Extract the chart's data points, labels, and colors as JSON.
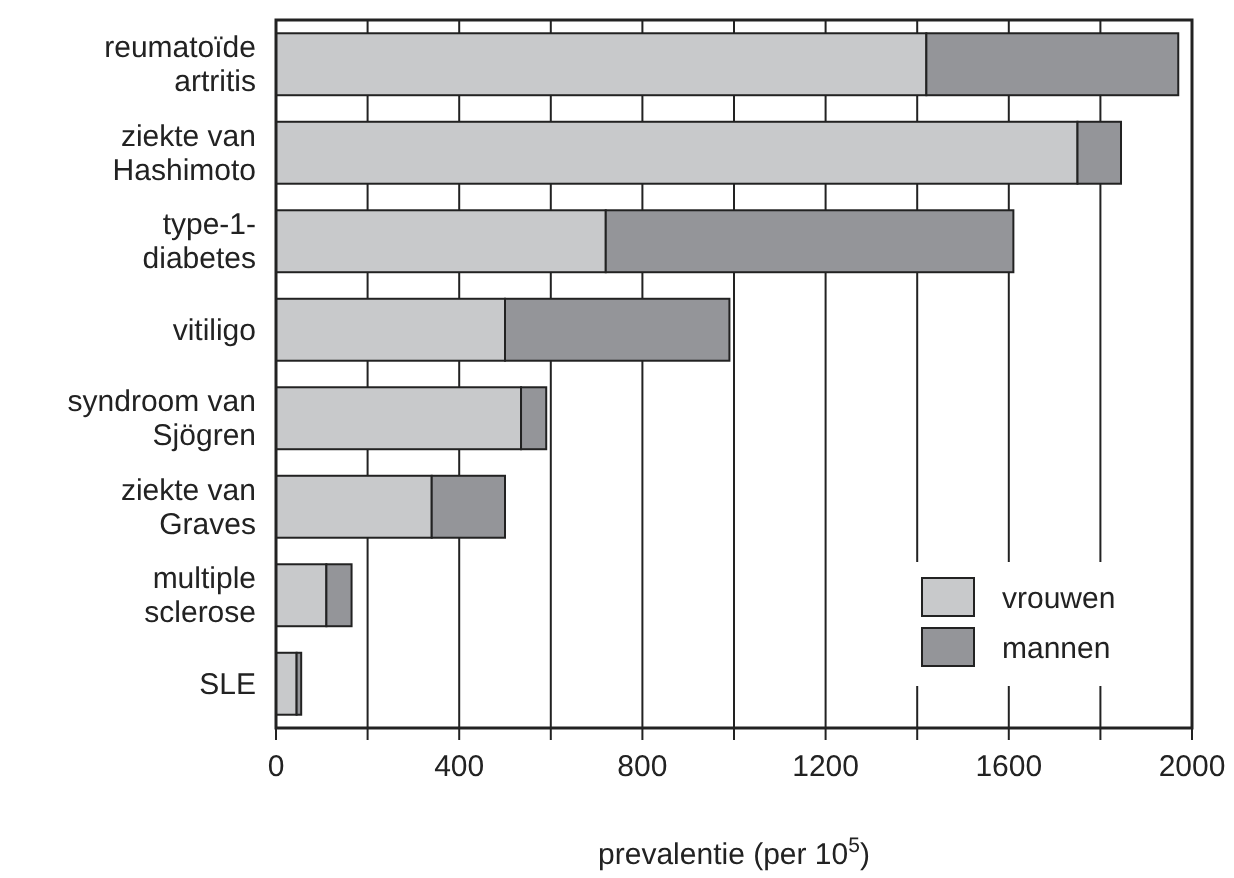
{
  "chart_data": {
    "type": "bar",
    "orientation": "horizontal",
    "stacked": true,
    "xlabel": "prevalentie (per 10$^{5}$)",
    "categories": [
      "reumatoïde artritis",
      "ziekte van Hashimoto",
      "type-1-diabetes",
      "vitiligo",
      "syndroom van Sjögren",
      "ziekte van Graves",
      "multiple sclerose",
      "SLE"
    ],
    "series": [
      {
        "name": "vrouwen",
        "color": "#c8c9cb",
        "values": [
          1420,
          1750,
          720,
          500,
          535,
          340,
          110,
          45
        ]
      },
      {
        "name": "mannen",
        "color": "#949599",
        "values": [
          550,
          95,
          890,
          490,
          55,
          160,
          55,
          10
        ]
      }
    ],
    "xlim": [
      0,
      2000
    ],
    "xticks": [
      0,
      {
        "value": 200,
        "label": null
      },
      400,
      {
        "value": 600,
        "label": null
      },
      800,
      {
        "value": 1000,
        "label": null
      },
      1200,
      {
        "value": 1400,
        "label": null
      },
      1600,
      {
        "value": 1800,
        "label": null
      },
      2000
    ],
    "grid": "x",
    "legend": "bottom right"
  }
}
